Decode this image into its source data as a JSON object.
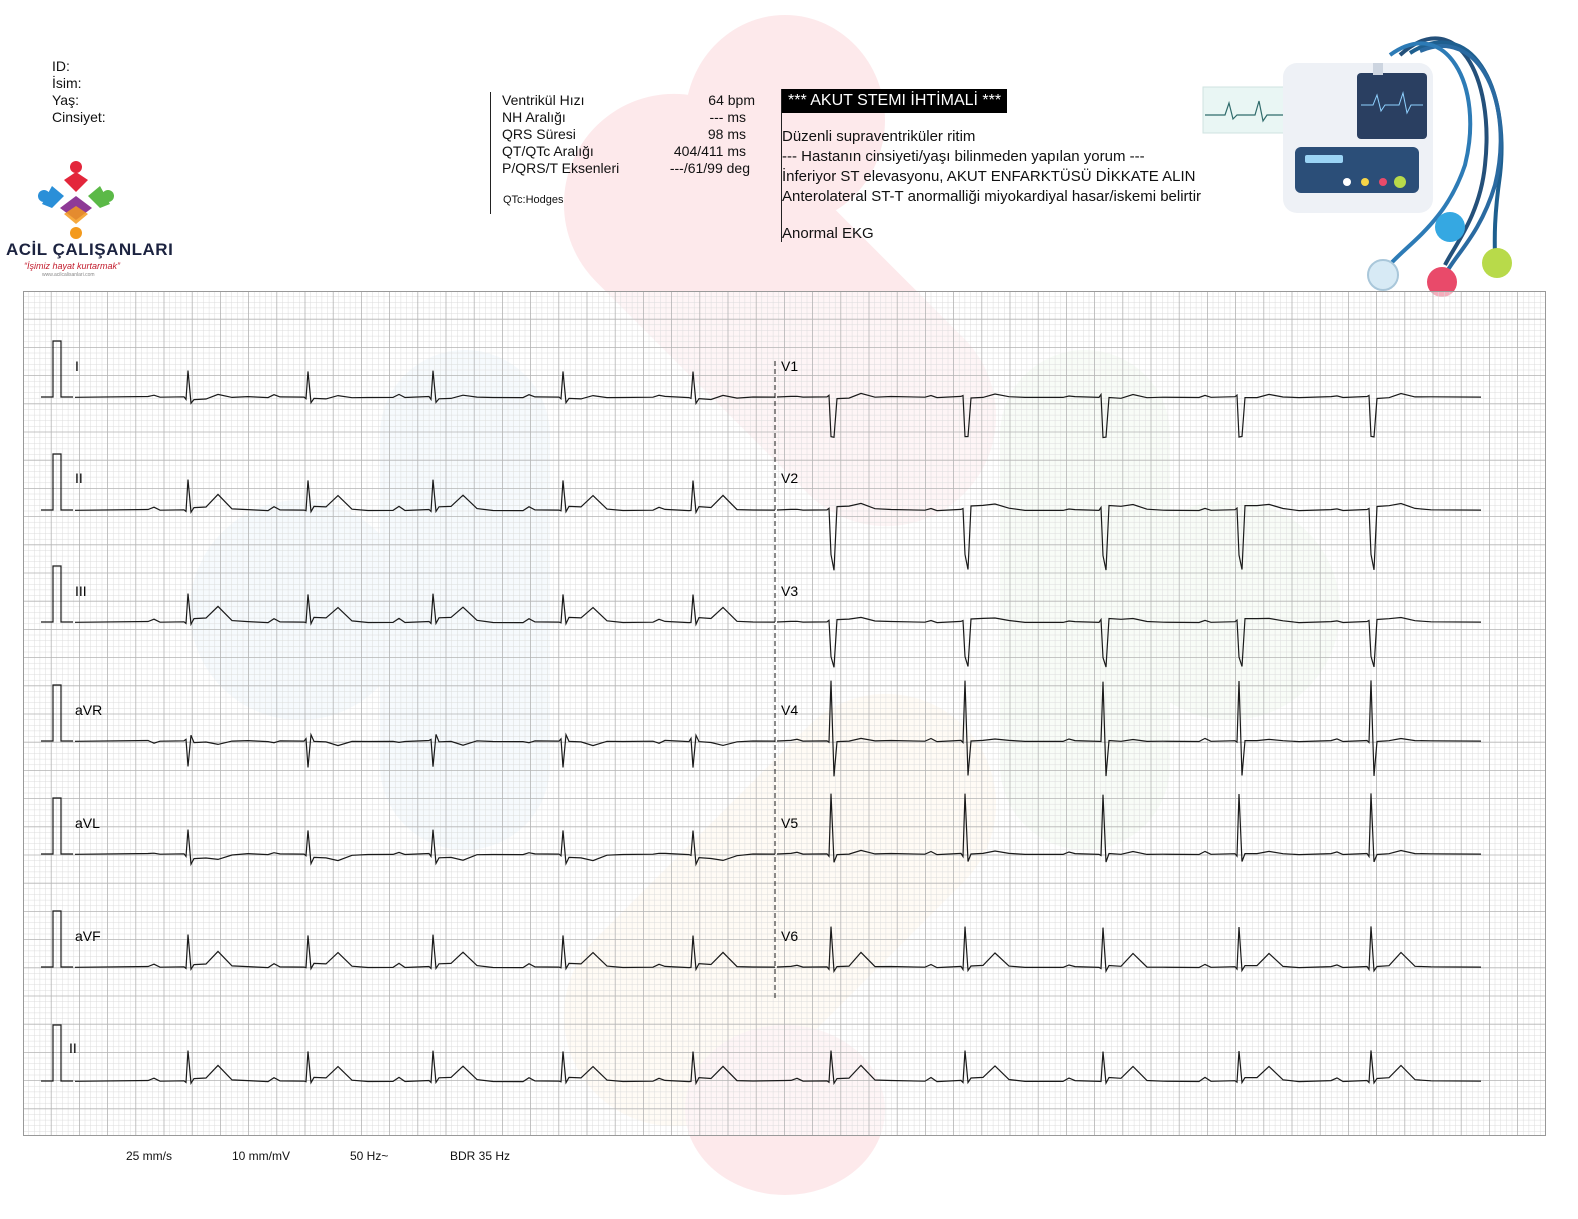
{
  "patient": {
    "id_label": "ID:",
    "name_label": "İsim:",
    "age_label": "Yaş:",
    "gender_label": "Cinsiyet:"
  },
  "logo": {
    "title": "ACİL ÇALIŞANLARI",
    "tagline": "“İşimiz hayat kurtarmak”",
    "url": "www.acilcalisanlari.com"
  },
  "measurements": {
    "rows": [
      {
        "label": "Ventrikül Hızı",
        "value": "64 bpm"
      },
      {
        "label": "NH Aralığı",
        "value": "--- ms"
      },
      {
        "label": "QRS Süresi",
        "value": "98 ms"
      },
      {
        "label": "QT/QTc Aralığı",
        "value": "404/411 ms"
      },
      {
        "label": "P/QRS/T Eksenleri",
        "value": "---/61/99 deg"
      }
    ],
    "qtc_method": "QTc:Hodges"
  },
  "interpretation": {
    "alert": "*** AKUT STEMI İHTİMALİ ***",
    "lines": [
      "Düzenli supraventriküler ritim",
      "--- Hastanın cinsiyeti/yaşı bilinmeden yapılan yorum ---",
      "İnferiyor ST elevasyonu, AKUT ENFARKTÜSÜ DİKKATE ALIN",
      "Anterolateral ST-T anormalliği miyokardiyal hasar/iskemi belirtir"
    ],
    "final": "Anormal EKG"
  },
  "leads": {
    "left": [
      "I",
      "II",
      "III",
      "aVR",
      "aVL",
      "aVF"
    ],
    "right": [
      "V1",
      "V2",
      "V3",
      "V4",
      "V5",
      "V6"
    ],
    "rhythm": "II"
  },
  "footer": {
    "speed": "25 mm/s",
    "gain": "10 mm/mV",
    "mains": "50 Hz~",
    "filter": "BDR 35 Hz"
  },
  "colors": {
    "grid_minor": "#dcdcdc",
    "grid_major": "#b4b4b4",
    "trace": "#1a1a1a",
    "alert_bg": "#000000",
    "logo_red": "#e3263b",
    "logo_blue": "#2a8fd8",
    "logo_green": "#5bb947",
    "logo_orange": "#f39a1d"
  }
}
